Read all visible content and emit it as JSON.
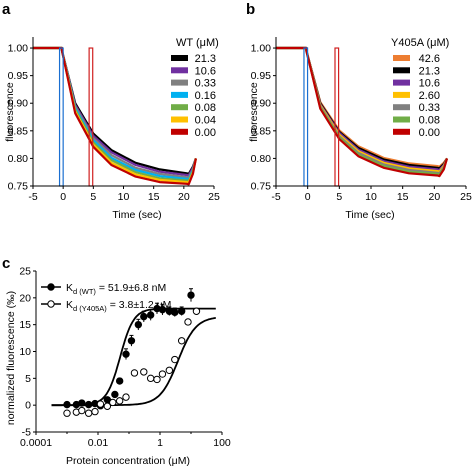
{
  "chart_data": [
    {
      "panel": "a",
      "type": "line",
      "xlabel": "Time (sec)",
      "ylabel": "fluorescence",
      "xlim": [
        -5,
        25
      ],
      "ylim": [
        0.75,
        1.02
      ],
      "xticks": [
        "-5",
        "0",
        "5",
        "10",
        "15",
        "20",
        "25"
      ],
      "yticks": [
        "0.75",
        "0.80",
        "0.85",
        "0.90",
        "0.95",
        "1.00"
      ],
      "legend_title": "WT (μM)",
      "legend_position": "top-right",
      "markers": [
        {
          "x": -0.3,
          "color": "#1a6fd1"
        },
        {
          "x": 4.6,
          "color": "#d02020"
        }
      ],
      "series": [
        {
          "name": "21.3",
          "color": "#000000",
          "points": [
            [
              -5,
              1.0
            ],
            [
              -0.2,
              1.0
            ],
            [
              -0.2,
              0.995
            ],
            [
              2,
              0.9
            ],
            [
              5,
              0.845
            ],
            [
              8,
              0.815
            ],
            [
              12,
              0.792
            ],
            [
              16,
              0.78
            ],
            [
              20.5,
              0.773
            ],
            [
              20.8,
              0.772
            ],
            [
              21.5,
              0.785
            ],
            [
              22,
              0.8
            ]
          ]
        },
        {
          "name": "10.6",
          "color": "#7030a0",
          "points": [
            [
              -5,
              1.0
            ],
            [
              -0.2,
              1.0
            ],
            [
              -0.2,
              0.995
            ],
            [
              2,
              0.897
            ],
            [
              5,
              0.841
            ],
            [
              8,
              0.811
            ],
            [
              12,
              0.788
            ],
            [
              16,
              0.776
            ],
            [
              20.5,
              0.77
            ],
            [
              20.8,
              0.769
            ],
            [
              21.5,
              0.783
            ],
            [
              22,
              0.8
            ]
          ]
        },
        {
          "name": "0.33",
          "color": "#808080",
          "points": [
            [
              -5,
              1.0
            ],
            [
              -0.2,
              1.0
            ],
            [
              -0.2,
              0.995
            ],
            [
              2,
              0.894
            ],
            [
              5,
              0.837
            ],
            [
              8,
              0.806
            ],
            [
              12,
              0.783
            ],
            [
              16,
              0.772
            ],
            [
              20.5,
              0.766
            ],
            [
              20.8,
              0.765
            ],
            [
              21.5,
              0.78
            ],
            [
              22,
              0.8
            ]
          ]
        },
        {
          "name": "0.16",
          "color": "#00b0f0",
          "points": [
            [
              -5,
              1.0
            ],
            [
              -0.2,
              1.0
            ],
            [
              -0.2,
              0.995
            ],
            [
              2,
              0.891
            ],
            [
              5,
              0.833
            ],
            [
              8,
              0.801
            ],
            [
              12,
              0.779
            ],
            [
              16,
              0.768
            ],
            [
              20.5,
              0.763
            ],
            [
              20.8,
              0.762
            ],
            [
              21.5,
              0.778
            ],
            [
              22,
              0.8
            ]
          ]
        },
        {
          "name": "0.08",
          "color": "#70ad47",
          "points": [
            [
              -5,
              1.0
            ],
            [
              -0.2,
              1.0
            ],
            [
              -0.2,
              0.995
            ],
            [
              2,
              0.888
            ],
            [
              5,
              0.829
            ],
            [
              8,
              0.797
            ],
            [
              12,
              0.775
            ],
            [
              16,
              0.764
            ],
            [
              20.5,
              0.76
            ],
            [
              20.8,
              0.759
            ],
            [
              21.5,
              0.776
            ],
            [
              22,
              0.8
            ]
          ]
        },
        {
          "name": "0.04",
          "color": "#ffc000",
          "points": [
            [
              -5,
              1.0
            ],
            [
              -0.2,
              1.0
            ],
            [
              -0.2,
              0.995
            ],
            [
              2,
              0.885
            ],
            [
              5,
              0.825
            ],
            [
              8,
              0.792
            ],
            [
              12,
              0.771
            ],
            [
              16,
              0.761
            ],
            [
              20.5,
              0.757
            ],
            [
              20.8,
              0.756
            ],
            [
              21.5,
              0.774
            ],
            [
              22,
              0.8
            ]
          ]
        },
        {
          "name": "0.00",
          "color": "#c00000",
          "points": [
            [
              -5,
              1.0
            ],
            [
              -0.2,
              1.0
            ],
            [
              -0.2,
              0.995
            ],
            [
              2,
              0.882
            ],
            [
              5,
              0.821
            ],
            [
              8,
              0.788
            ],
            [
              12,
              0.767
            ],
            [
              16,
              0.757
            ],
            [
              20.5,
              0.754
            ],
            [
              20.8,
              0.753
            ],
            [
              21.5,
              0.772
            ],
            [
              22,
              0.8
            ]
          ]
        }
      ]
    },
    {
      "panel": "b",
      "type": "line",
      "xlabel": "Time (sec)",
      "ylabel": "fluorescence",
      "xlim": [
        -5,
        25
      ],
      "ylim": [
        0.75,
        1.02
      ],
      "xticks": [
        "-5",
        "0",
        "5",
        "10",
        "15",
        "20",
        "25"
      ],
      "yticks": [
        "0.75",
        "0.80",
        "0.85",
        "0.90",
        "0.95",
        "1.00"
      ],
      "legend_title": "Y405A (μM)",
      "legend_position": "top-right",
      "markers": [
        {
          "x": -0.3,
          "color": "#1a6fd1"
        },
        {
          "x": 4.6,
          "color": "#d02020"
        }
      ],
      "series": [
        {
          "name": "42.6",
          "color": "#ed7d31",
          "points": [
            [
              -5,
              1.0
            ],
            [
              -0.2,
              1.0
            ],
            [
              -0.2,
              0.995
            ],
            [
              2,
              0.902
            ],
            [
              5,
              0.851
            ],
            [
              8,
              0.822
            ],
            [
              12,
              0.801
            ],
            [
              16,
              0.791
            ],
            [
              20.5,
              0.786
            ],
            [
              20.8,
              0.785
            ],
            [
              21.5,
              0.792
            ],
            [
              22,
              0.8
            ]
          ]
        },
        {
          "name": "21.3",
          "color": "#000000",
          "points": [
            [
              -5,
              1.0
            ],
            [
              -0.2,
              1.0
            ],
            [
              -0.2,
              0.995
            ],
            [
              2,
              0.9
            ],
            [
              5,
              0.848
            ],
            [
              8,
              0.819
            ],
            [
              12,
              0.798
            ],
            [
              16,
              0.788
            ],
            [
              20.5,
              0.783
            ],
            [
              20.8,
              0.782
            ],
            [
              21.5,
              0.79
            ],
            [
              22,
              0.8
            ]
          ]
        },
        {
          "name": "10.6",
          "color": "#7030a0",
          "points": [
            [
              -5,
              1.0
            ],
            [
              -0.2,
              1.0
            ],
            [
              -0.2,
              0.995
            ],
            [
              2,
              0.898
            ],
            [
              5,
              0.846
            ],
            [
              8,
              0.816
            ],
            [
              12,
              0.795
            ],
            [
              16,
              0.785
            ],
            [
              20.5,
              0.78
            ],
            [
              20.8,
              0.779
            ],
            [
              21.5,
              0.788
            ],
            [
              22,
              0.8
            ]
          ]
        },
        {
          "name": "2.60",
          "color": "#ffc000",
          "points": [
            [
              -5,
              1.0
            ],
            [
              -0.2,
              1.0
            ],
            [
              -0.2,
              0.995
            ],
            [
              2,
              0.896
            ],
            [
              5,
              0.843
            ],
            [
              8,
              0.813
            ],
            [
              12,
              0.792
            ],
            [
              16,
              0.782
            ],
            [
              20.5,
              0.777
            ],
            [
              20.8,
              0.776
            ],
            [
              21.5,
              0.786
            ],
            [
              22,
              0.8
            ]
          ]
        },
        {
          "name": "0.33",
          "color": "#808080",
          "points": [
            [
              -5,
              1.0
            ],
            [
              -0.2,
              1.0
            ],
            [
              -0.2,
              0.995
            ],
            [
              2,
              0.894
            ],
            [
              5,
              0.84
            ],
            [
              8,
              0.81
            ],
            [
              12,
              0.789
            ],
            [
              16,
              0.779
            ],
            [
              20.5,
              0.774
            ],
            [
              20.8,
              0.773
            ],
            [
              21.5,
              0.784
            ],
            [
              22,
              0.8
            ]
          ]
        },
        {
          "name": "0.08",
          "color": "#70ad47",
          "points": [
            [
              -5,
              1.0
            ],
            [
              -0.2,
              1.0
            ],
            [
              -0.2,
              0.995
            ],
            [
              2,
              0.892
            ],
            [
              5,
              0.838
            ],
            [
              8,
              0.807
            ],
            [
              12,
              0.786
            ],
            [
              16,
              0.776
            ],
            [
              20.5,
              0.772
            ],
            [
              20.8,
              0.771
            ],
            [
              21.5,
              0.782
            ],
            [
              22,
              0.8
            ]
          ]
        },
        {
          "name": "0.00",
          "color": "#c00000",
          "points": [
            [
              -5,
              1.0
            ],
            [
              -0.2,
              1.0
            ],
            [
              -0.2,
              0.995
            ],
            [
              2,
              0.89
            ],
            [
              5,
              0.835
            ],
            [
              8,
              0.804
            ],
            [
              12,
              0.783
            ],
            [
              16,
              0.773
            ],
            [
              20.5,
              0.769
            ],
            [
              20.8,
              0.768
            ],
            [
              21.5,
              0.78
            ],
            [
              22,
              0.8
            ]
          ]
        }
      ]
    },
    {
      "panel": "c",
      "type": "scatter",
      "xscale": "log",
      "xlabel": "Protein concentration (μM)",
      "ylabel": "normalized fluorescence (‰)",
      "xlim": [
        0.0001,
        100
      ],
      "ylim": [
        -5,
        25
      ],
      "xticks": [
        "0.0001",
        "0.01",
        "1",
        "100"
      ],
      "yticks": [
        "-5",
        "0",
        "5",
        "10",
        "15",
        "20",
        "25"
      ],
      "legend_position": "top-left",
      "series": [
        {
          "name": "WT",
          "legend_label": "K",
          "legend_sub": "d (WT)",
          "legend_value": " = 51.9±6.8 nM",
          "marker": "filled",
          "points": [
            [
              0.001,
              0.1
            ],
            [
              0.002,
              0.1
            ],
            [
              0.003,
              0.4
            ],
            [
              0.005,
              0.1
            ],
            [
              0.008,
              0.3
            ],
            [
              0.012,
              -0.1
            ],
            [
              0.02,
              1.0
            ],
            [
              0.035,
              2.0
            ],
            [
              0.05,
              4.5
            ],
            [
              0.08,
              9.5
            ],
            [
              0.12,
              12.0
            ],
            [
              0.2,
              15.0
            ],
            [
              0.3,
              16.5
            ],
            [
              0.5,
              16.8
            ],
            [
              0.8,
              18.0
            ],
            [
              1.2,
              17.8
            ],
            [
              2,
              17.5
            ],
            [
              3,
              17.3
            ],
            [
              5,
              17.5
            ],
            [
              10,
              20.5
            ]
          ],
          "errors": [
            0,
            0,
            0,
            0,
            0,
            0,
            0,
            0,
            0.5,
            1.0,
            1.0,
            1.0,
            1.0,
            1.0,
            1.0,
            1.0,
            0.8,
            0.8,
            0.8,
            1.2
          ],
          "fit": {
            "top": 18.0,
            "kd": 0.0519,
            "hill": 2.0
          }
        },
        {
          "name": "Y405A",
          "legend_label": "K",
          "legend_sub": "d (Y405A)",
          "legend_value": " = 3.8±1.2 μM",
          "marker": "open",
          "points": [
            [
              0.001,
              -1.5
            ],
            [
              0.002,
              -1.3
            ],
            [
              0.003,
              -1.0
            ],
            [
              0.005,
              -1.5
            ],
            [
              0.008,
              -1.2
            ],
            [
              0.012,
              0.2
            ],
            [
              0.02,
              -0.2
            ],
            [
              0.03,
              0.5
            ],
            [
              0.05,
              0.8
            ],
            [
              0.08,
              1.5
            ],
            [
              0.15,
              6.0
            ],
            [
              0.3,
              6.2
            ],
            [
              0.5,
              5.0
            ],
            [
              0.8,
              4.8
            ],
            [
              1.2,
              5.8
            ],
            [
              2,
              6.5
            ],
            [
              3,
              8.5
            ],
            [
              5,
              12.0
            ],
            [
              8,
              15.5
            ],
            [
              15,
              17.5
            ]
          ],
          "errors": [],
          "fit": {
            "top": 16.5,
            "kd": 3.8,
            "hill": 1.5
          }
        }
      ]
    }
  ],
  "panels": {
    "a": {
      "letter": "a"
    },
    "b": {
      "letter": "b"
    },
    "c": {
      "letter": "c"
    }
  }
}
